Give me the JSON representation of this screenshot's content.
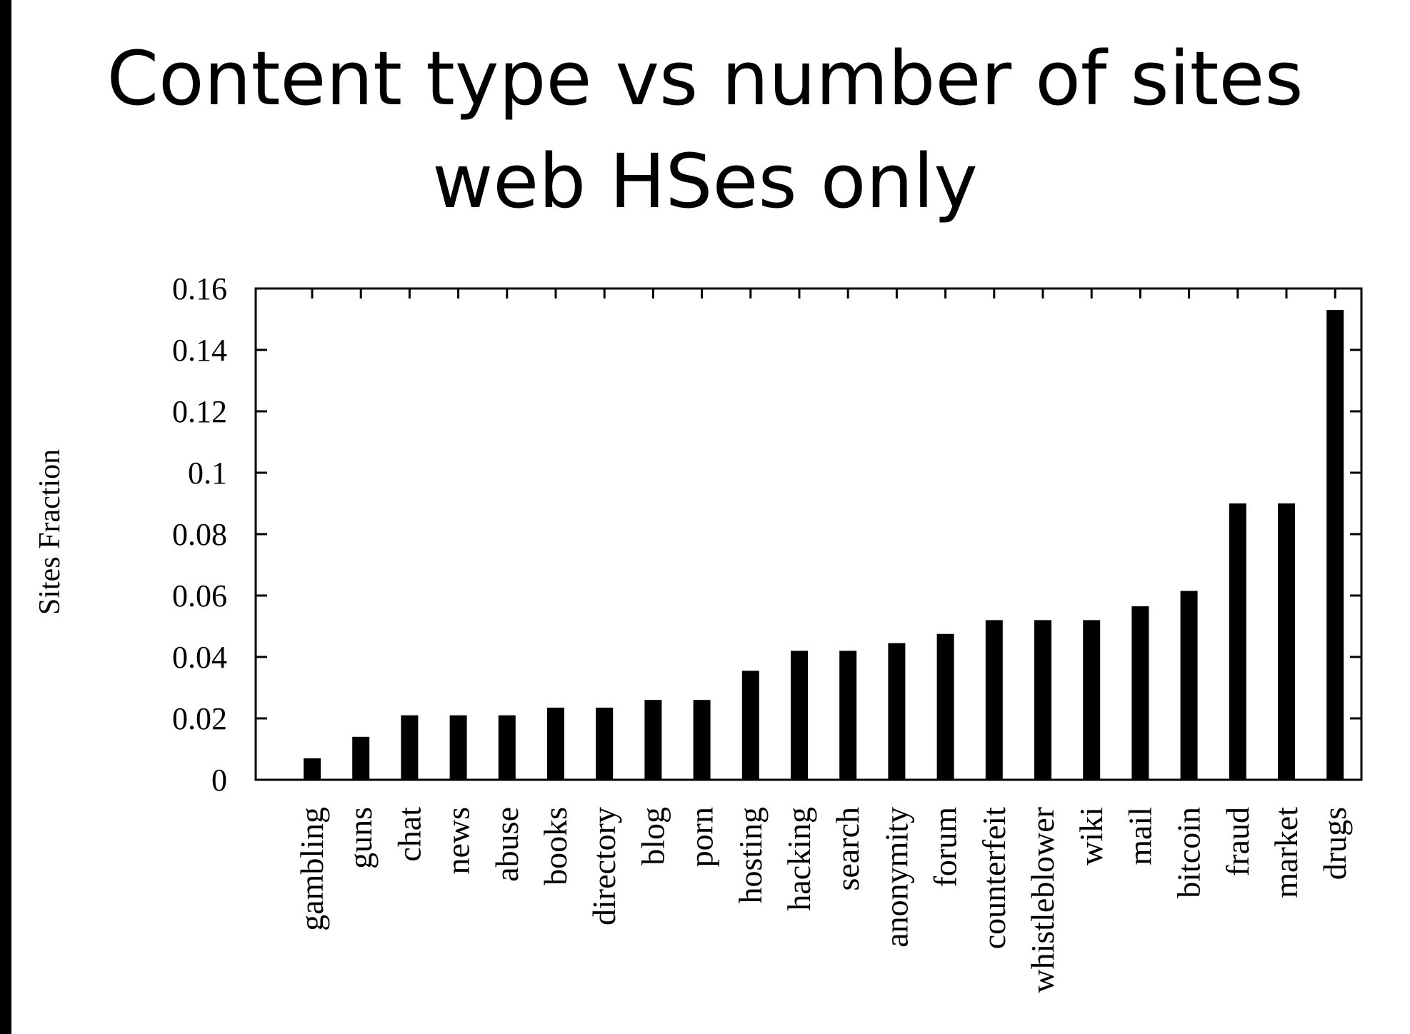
{
  "chart_data": {
    "type": "bar",
    "title": "Content type vs number of sites",
    "subtitle": "web HSes only",
    "xlabel": "",
    "ylabel": "Sites Fraction",
    "ylim": [
      0,
      0.16
    ],
    "yticks": [
      "0",
      "0.02",
      "0.04",
      "0.06",
      "0.08",
      "0.1",
      "0.12",
      "0.14",
      "0.16"
    ],
    "grid": false,
    "bar_color": "#000000",
    "categories": [
      "gambling",
      "guns",
      "chat",
      "news",
      "abuse",
      "books",
      "directory",
      "blog",
      "porn",
      "hosting",
      "hacking",
      "search",
      "anonymity",
      "forum",
      "counterfeit",
      "whistleblower",
      "wiki",
      "mail",
      "bitcoin",
      "fraud",
      "market",
      "drugs"
    ],
    "values": [
      0.007,
      0.014,
      0.021,
      0.021,
      0.021,
      0.0235,
      0.0235,
      0.026,
      0.026,
      0.0355,
      0.042,
      0.042,
      0.0445,
      0.0475,
      0.052,
      0.052,
      0.052,
      0.0565,
      0.0615,
      0.09,
      0.09,
      0.153
    ]
  }
}
